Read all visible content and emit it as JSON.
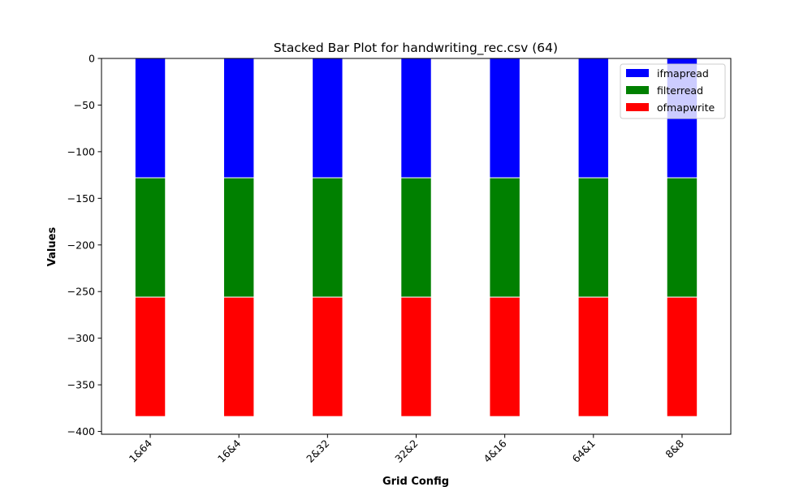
{
  "chart_data": {
    "type": "bar",
    "stacked": true,
    "title": "Stacked Bar Plot for handwriting_rec.csv (64)",
    "xlabel": "Grid Config",
    "ylabel": "Values",
    "categories": [
      "1&64",
      "16&4",
      "2&32",
      "32&2",
      "4&16",
      "64&1",
      "8&8"
    ],
    "series": [
      {
        "name": "ifmapread",
        "color": "#0000ff",
        "values": [
          -128,
          -128,
          -128,
          -128,
          -128,
          -128,
          -128
        ]
      },
      {
        "name": "filterread",
        "color": "#008000",
        "values": [
          -128,
          -128,
          -128,
          -128,
          -128,
          -128,
          -128
        ]
      },
      {
        "name": "ofmapwrite",
        "color": "#ff0000",
        "values": [
          -128,
          -128,
          -128,
          -128,
          -128,
          -128,
          -128
        ]
      }
    ],
    "ylim": [
      -403,
      0
    ],
    "yticks": [
      0,
      -50,
      -100,
      -150,
      -200,
      -250,
      -300,
      -350,
      -400
    ],
    "ytick_labels": [
      "0",
      "−50",
      "−100",
      "−150",
      "−200",
      "−250",
      "−300",
      "−350",
      "−400"
    ],
    "xtick_rotation": -45,
    "grid": false,
    "legend": "top-right"
  }
}
